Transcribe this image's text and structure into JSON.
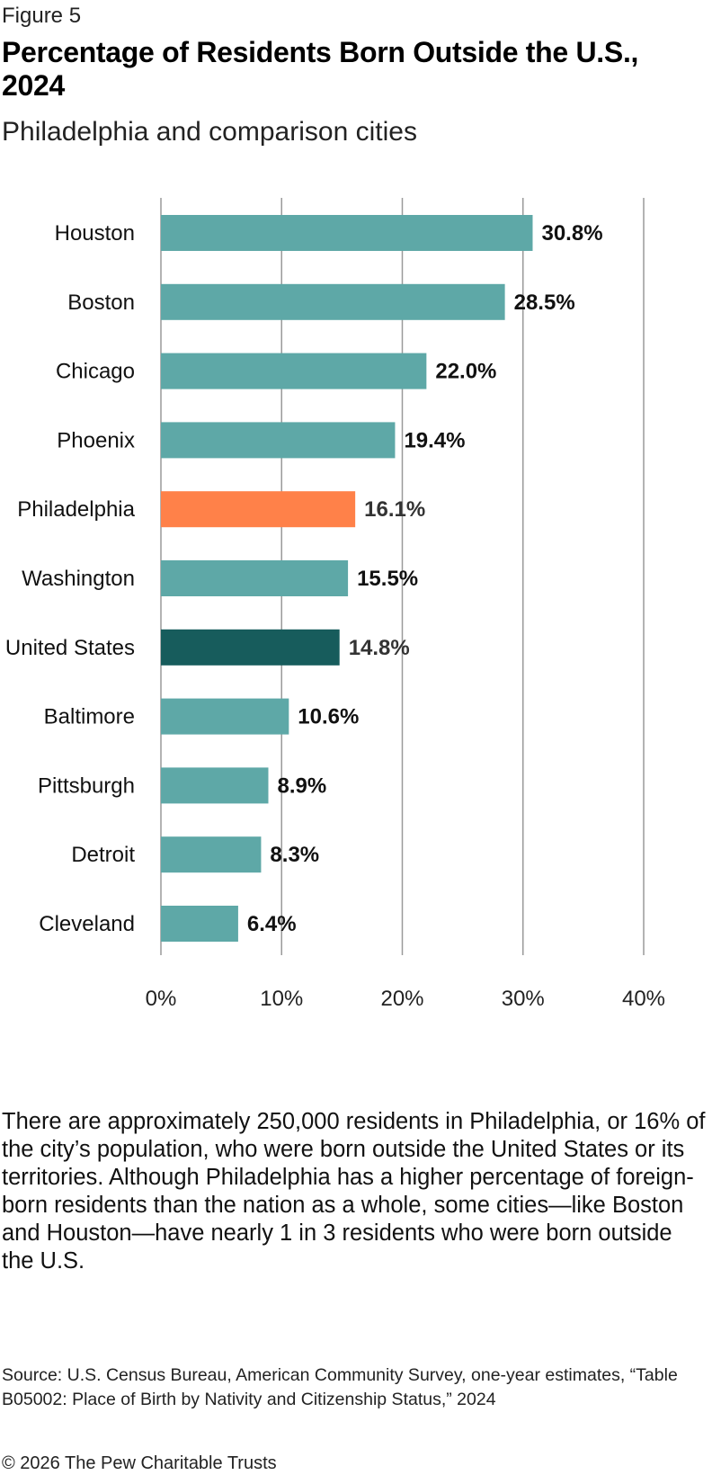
{
  "figure_label": "Figure 5",
  "title": "Percentage of Residents Born Outside the U.S., 2024",
  "subtitle": "Philadelphia and comparison cities",
  "colors": {
    "default_bar": "#5ea8a7",
    "philadelphia_bar": "#ff8149",
    "united_states_bar": "#175c5c",
    "gridline": "#9a9a9a",
    "text": "#111111"
  },
  "chart_data": {
    "type": "bar",
    "orientation": "horizontal",
    "categories": [
      "Houston",
      "Boston",
      "Chicago",
      "Phoenix",
      "Philadelphia",
      "Washington",
      "United States",
      "Baltimore",
      "Pittsburgh",
      "Detroit",
      "Cleveland"
    ],
    "values": [
      30.8,
      28.5,
      22.0,
      19.4,
      16.1,
      15.5,
      14.8,
      10.6,
      8.9,
      8.3,
      6.4
    ],
    "data_labels": [
      "30.8%",
      "28.5%",
      "22.0%",
      "19.4%",
      "16.1%",
      "15.5%",
      "14.8%",
      "10.6%",
      "8.9%",
      "8.3%",
      "6.4%"
    ],
    "highlight": {
      "Philadelphia": "philadelphia_bar",
      "United States": "united_states_bar"
    },
    "xlim": [
      0,
      40
    ],
    "x_ticks": [
      0,
      10,
      20,
      30,
      40
    ],
    "x_tick_labels": [
      "0%",
      "10%",
      "20%",
      "30%",
      "40%"
    ],
    "grid": true,
    "title": "Percentage of Residents Born Outside the U.S., 2024",
    "xlabel": "",
    "ylabel": ""
  },
  "description": "There are approximately 250,000 residents in Philadelphia, or 16% of the city’s population, who were born outside the United States or its territories. Although Philadelphia has a higher percentage of foreign-born residents than the nation as a whole, some cities—like Boston and Houston—have nearly 1 in 3 residents who were born outside the U.S.",
  "source": "Source: U.S. Census Bureau, American Community Survey, one-year estimates, “Table B05002: Place of Birth by Nativity and Citizenship Status,” 2024",
  "copyright": "© 2026 The Pew Charitable Trusts"
}
